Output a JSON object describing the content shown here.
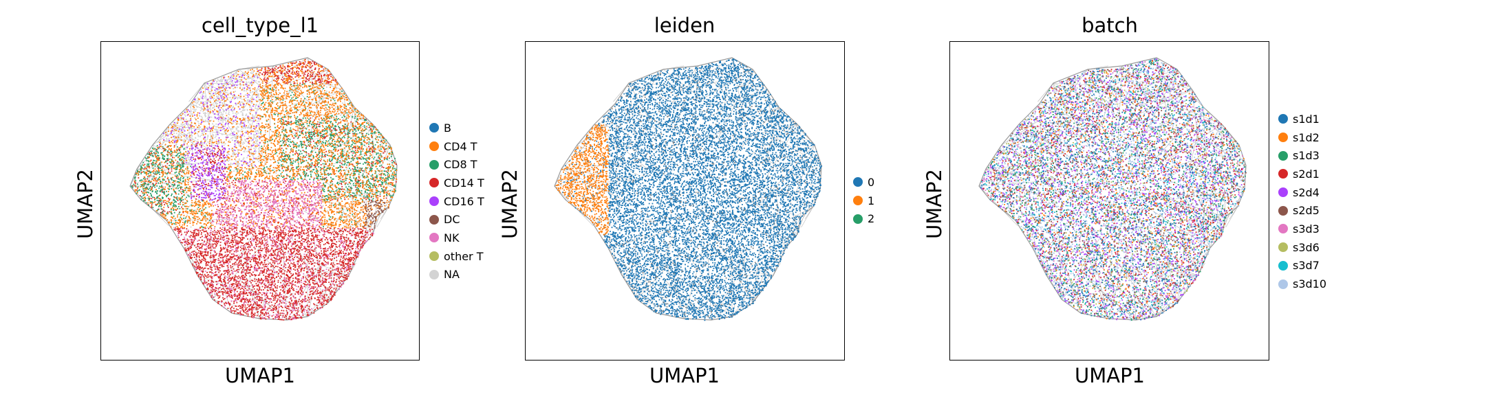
{
  "chart_data": [
    {
      "type": "scatter",
      "title": "cell_type_l1",
      "xlabel": "UMAP1",
      "ylabel": "UMAP2",
      "legend_position": "right",
      "grid": false,
      "axis_ticks": false,
      "categories": [
        {
          "label": "B",
          "color": "#1f77b4"
        },
        {
          "label": "CD4 T",
          "color": "#ff7f0e"
        },
        {
          "label": "CD8 T",
          "color": "#279e68"
        },
        {
          "label": "CD14 T",
          "color": "#d62728"
        },
        {
          "label": "CD16 T",
          "color": "#aa40fc"
        },
        {
          "label": "DC",
          "color": "#8c564b"
        },
        {
          "label": "NK",
          "color": "#e377c2"
        },
        {
          "label": "other T",
          "color": "#b5bd61"
        },
        {
          "label": "NA",
          "color": "#d3d3d3"
        }
      ]
    },
    {
      "type": "scatter",
      "title": "leiden",
      "xlabel": "UMAP1",
      "ylabel": "UMAP2",
      "legend_position": "right",
      "grid": false,
      "axis_ticks": false,
      "categories": [
        {
          "label": "0",
          "color": "#1f77b4"
        },
        {
          "label": "1",
          "color": "#ff7f0e"
        },
        {
          "label": "2",
          "color": "#279e68"
        }
      ]
    },
    {
      "type": "scatter",
      "title": "batch",
      "xlabel": "UMAP1",
      "ylabel": "UMAP2",
      "legend_position": "right",
      "grid": false,
      "axis_ticks": false,
      "categories": [
        {
          "label": "s1d1",
          "color": "#1f77b4"
        },
        {
          "label": "s1d2",
          "color": "#ff7f0e"
        },
        {
          "label": "s1d3",
          "color": "#279e68"
        },
        {
          "label": "s2d1",
          "color": "#d62728"
        },
        {
          "label": "s2d4",
          "color": "#aa40fc"
        },
        {
          "label": "s2d5",
          "color": "#8c564b"
        },
        {
          "label": "s3d3",
          "color": "#e377c2"
        },
        {
          "label": "s3d6",
          "color": "#b5bd61"
        },
        {
          "label": "s3d7",
          "color": "#17becf"
        },
        {
          "label": "s3d10",
          "color": "#aec7e8"
        }
      ]
    }
  ]
}
